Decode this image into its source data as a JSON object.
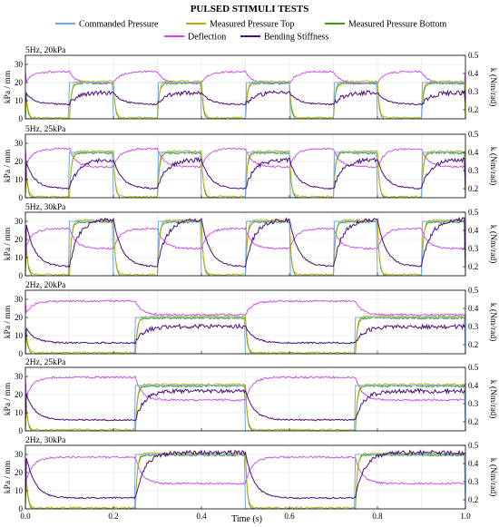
{
  "figure": {
    "title": "PULSED STIMULI TESTS",
    "xlabel": "Time (s)",
    "y_left_label": "kPa / mm",
    "y_right_label": "k (Nm/rad)",
    "x_ticks": [
      "0.0",
      "0.2",
      "0.4",
      "0.6",
      "0.8",
      "1.0"
    ],
    "y_left_ticks": [
      "0",
      "10",
      "20",
      "30"
    ],
    "y_right_ticks": [
      "0.2",
      "0.3",
      "0.4",
      "0.5"
    ]
  },
  "legend": [
    {
      "name": "Commanded Pressure",
      "color": "#6fa8f0"
    },
    {
      "name": "Measured Pressure Top",
      "color": "#b8b000"
    },
    {
      "name": "Measured Pressure Bottom",
      "color": "#3f9a1c"
    },
    {
      "name": "Deflection",
      "color": "#cc44ee"
    },
    {
      "name": "Bending Stiffness",
      "color": "#4b0f7a"
    }
  ],
  "chart_data": [
    {
      "type": "line",
      "label": "5Hz, 20kPa",
      "period": 0.2,
      "high_fraction": 0.5,
      "pressure_kpa": 20,
      "deflection_low": 26,
      "deflection_high": 19.5,
      "stiffness_low": 0.23,
      "stiffness_high": 0.295,
      "xlim": [
        0,
        1
      ],
      "ylim": [
        0,
        35
      ],
      "y2lim": [
        0.15,
        0.5
      ]
    },
    {
      "type": "line",
      "label": "5Hz, 25kPa",
      "period": 0.2,
      "high_fraction": 0.5,
      "pressure_kpa": 25,
      "deflection_low": 27,
      "deflection_high": 17,
      "stiffness_low": 0.2,
      "stiffness_high": 0.36,
      "xlim": [
        0,
        1
      ],
      "ylim": [
        0,
        35
      ],
      "y2lim": [
        0.15,
        0.5
      ]
    },
    {
      "type": "line",
      "label": "5Hz, 30kPa",
      "period": 0.2,
      "high_fraction": 0.5,
      "pressure_kpa": 30,
      "deflection_low": 26,
      "deflection_high": 15,
      "stiffness_low": 0.2,
      "stiffness_high": 0.46,
      "xlim": [
        0,
        1
      ],
      "ylim": [
        0,
        35
      ],
      "y2lim": [
        0.15,
        0.5
      ]
    },
    {
      "type": "line",
      "label": "2Hz, 20kPa",
      "period": 0.5,
      "high_fraction": 0.5,
      "pressure_kpa": 20,
      "deflection_low": 29,
      "deflection_high": 21.5,
      "stiffness_low": 0.21,
      "stiffness_high": 0.3,
      "xlim": [
        0,
        1
      ],
      "ylim": [
        0,
        35
      ],
      "y2lim": [
        0.15,
        0.5
      ]
    },
    {
      "type": "line",
      "label": "2Hz, 25kPa",
      "period": 0.5,
      "high_fraction": 0.5,
      "pressure_kpa": 25,
      "deflection_low": 29.5,
      "deflection_high": 17,
      "stiffness_low": 0.21,
      "stiffness_high": 0.37,
      "xlim": [
        0,
        1
      ],
      "ylim": [
        0,
        35
      ],
      "y2lim": [
        0.15,
        0.5
      ]
    },
    {
      "type": "line",
      "label": "2Hz, 30kPa",
      "period": 0.5,
      "high_fraction": 0.5,
      "pressure_kpa": 30,
      "deflection_low": 28.5,
      "deflection_high": 14,
      "stiffness_low": 0.21,
      "stiffness_high": 0.46,
      "xlim": [
        0,
        1
      ],
      "ylim": [
        0,
        35
      ],
      "y2lim": [
        0.15,
        0.5
      ]
    }
  ]
}
